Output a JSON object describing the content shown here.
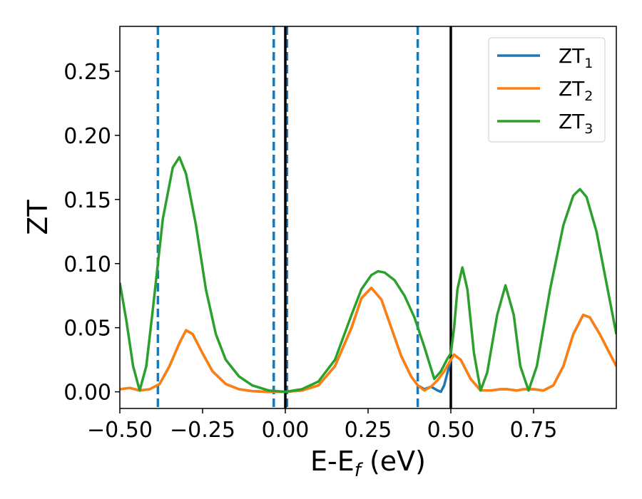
{
  "chart_data": {
    "type": "line",
    "xlabel": "E-E",
    "xlabel_sub": "f",
    "xlabel_unit": " (eV)",
    "ylabel": "ZT",
    "xlim": [
      -0.5,
      1.0
    ],
    "ylim": [
      -0.013,
      0.285
    ],
    "x_ticks": [
      -0.5,
      -0.25,
      0.0,
      0.25,
      0.5,
      0.75
    ],
    "x_tick_labels": [
      "−0.50",
      "−0.25",
      "0.00",
      "0.25",
      "0.50",
      "0.75"
    ],
    "y_ticks": [
      0.0,
      0.05,
      0.1,
      0.15,
      0.2,
      0.25
    ],
    "y_tick_labels": [
      "0.00",
      "0.05",
      "0.10",
      "0.15",
      "0.20",
      "0.25"
    ],
    "grid": false,
    "legend_position": "top-right",
    "legend_base": "ZT",
    "series": [
      {
        "name": "ZT1",
        "label_sub": "1",
        "color": "#1f77b4",
        "points": [
          [
            -0.5,
            0.002
          ],
          [
            -0.47,
            0.003
          ],
          [
            -0.44,
            0.001
          ],
          [
            -0.41,
            0.002
          ],
          [
            -0.38,
            0.006
          ],
          [
            -0.35,
            0.02
          ],
          [
            -0.32,
            0.038
          ],
          [
            -0.3,
            0.048
          ],
          [
            -0.28,
            0.045
          ],
          [
            -0.25,
            0.03
          ],
          [
            -0.22,
            0.016
          ],
          [
            -0.18,
            0.006
          ],
          [
            -0.14,
            0.002
          ],
          [
            -0.1,
            0.0005
          ],
          [
            -0.05,
            0.0
          ],
          [
            0.0,
            0.0
          ],
          [
            0.05,
            0.001
          ],
          [
            0.1,
            0.005
          ],
          [
            0.15,
            0.02
          ],
          [
            0.2,
            0.05
          ],
          [
            0.23,
            0.073
          ],
          [
            0.26,
            0.081
          ],
          [
            0.29,
            0.072
          ],
          [
            0.32,
            0.05
          ],
          [
            0.35,
            0.028
          ],
          [
            0.38,
            0.012
          ],
          [
            0.4,
            0.005
          ],
          [
            0.42,
            0.002
          ],
          [
            0.44,
            0.004
          ],
          [
            0.46,
            0.001
          ],
          [
            0.47,
            0.0
          ],
          [
            0.48,
            0.005
          ],
          [
            0.5,
            0.025
          ],
          [
            0.51,
            0.029
          ],
          [
            0.53,
            0.025
          ],
          [
            0.56,
            0.01
          ],
          [
            0.59,
            0.001
          ],
          [
            0.62,
            0.001
          ],
          [
            0.65,
            0.002
          ],
          [
            0.67,
            0.002
          ],
          [
            0.7,
            0.001
          ],
          [
            0.72,
            0.002
          ],
          [
            0.75,
            0.002
          ],
          [
            0.78,
            0.001
          ],
          [
            0.81,
            0.005
          ],
          [
            0.84,
            0.02
          ],
          [
            0.87,
            0.045
          ],
          [
            0.9,
            0.06
          ],
          [
            0.92,
            0.058
          ],
          [
            0.95,
            0.045
          ],
          [
            0.98,
            0.03
          ],
          [
            1.0,
            0.02
          ]
        ]
      },
      {
        "name": "ZT2",
        "label_sub": "2",
        "color": "#ff7f0e",
        "points": [
          [
            -0.5,
            0.002
          ],
          [
            -0.47,
            0.003
          ],
          [
            -0.44,
            0.001
          ],
          [
            -0.41,
            0.002
          ],
          [
            -0.38,
            0.006
          ],
          [
            -0.35,
            0.02
          ],
          [
            -0.32,
            0.038
          ],
          [
            -0.3,
            0.048
          ],
          [
            -0.28,
            0.045
          ],
          [
            -0.25,
            0.03
          ],
          [
            -0.22,
            0.016
          ],
          [
            -0.18,
            0.006
          ],
          [
            -0.14,
            0.002
          ],
          [
            -0.1,
            0.0005
          ],
          [
            -0.05,
            0.0
          ],
          [
            0.0,
            0.0
          ],
          [
            0.05,
            0.001
          ],
          [
            0.1,
            0.005
          ],
          [
            0.15,
            0.02
          ],
          [
            0.2,
            0.05
          ],
          [
            0.23,
            0.073
          ],
          [
            0.26,
            0.081
          ],
          [
            0.29,
            0.072
          ],
          [
            0.32,
            0.05
          ],
          [
            0.35,
            0.028
          ],
          [
            0.38,
            0.012
          ],
          [
            0.4,
            0.005
          ],
          [
            0.42,
            0.001
          ],
          [
            0.44,
            0.004
          ],
          [
            0.46,
            0.009
          ],
          [
            0.48,
            0.016
          ],
          [
            0.5,
            0.025
          ],
          [
            0.51,
            0.029
          ],
          [
            0.53,
            0.025
          ],
          [
            0.56,
            0.01
          ],
          [
            0.59,
            0.001
          ],
          [
            0.62,
            0.001
          ],
          [
            0.65,
            0.002
          ],
          [
            0.67,
            0.002
          ],
          [
            0.7,
            0.001
          ],
          [
            0.72,
            0.002
          ],
          [
            0.75,
            0.002
          ],
          [
            0.78,
            0.001
          ],
          [
            0.81,
            0.005
          ],
          [
            0.84,
            0.02
          ],
          [
            0.87,
            0.045
          ],
          [
            0.9,
            0.06
          ],
          [
            0.92,
            0.058
          ],
          [
            0.95,
            0.045
          ],
          [
            0.98,
            0.03
          ],
          [
            1.0,
            0.02
          ]
        ]
      },
      {
        "name": "ZT3",
        "label_sub": "3",
        "color": "#2ca02c",
        "points": [
          [
            -0.5,
            0.085
          ],
          [
            -0.48,
            0.055
          ],
          [
            -0.46,
            0.02
          ],
          [
            -0.44,
            0.001
          ],
          [
            -0.42,
            0.02
          ],
          [
            -0.4,
            0.065
          ],
          [
            -0.37,
            0.135
          ],
          [
            -0.34,
            0.175
          ],
          [
            -0.32,
            0.183
          ],
          [
            -0.3,
            0.17
          ],
          [
            -0.27,
            0.13
          ],
          [
            -0.24,
            0.08
          ],
          [
            -0.21,
            0.045
          ],
          [
            -0.18,
            0.025
          ],
          [
            -0.14,
            0.012
          ],
          [
            -0.1,
            0.005
          ],
          [
            -0.05,
            0.001
          ],
          [
            0.0,
            0.0
          ],
          [
            0.05,
            0.002
          ],
          [
            0.1,
            0.008
          ],
          [
            0.15,
            0.025
          ],
          [
            0.2,
            0.06
          ],
          [
            0.23,
            0.08
          ],
          [
            0.26,
            0.091
          ],
          [
            0.28,
            0.094
          ],
          [
            0.3,
            0.093
          ],
          [
            0.33,
            0.087
          ],
          [
            0.36,
            0.075
          ],
          [
            0.39,
            0.058
          ],
          [
            0.42,
            0.035
          ],
          [
            0.45,
            0.01
          ],
          [
            0.47,
            0.016
          ],
          [
            0.49,
            0.026
          ],
          [
            0.5,
            0.03
          ],
          [
            0.51,
            0.05
          ],
          [
            0.52,
            0.08
          ],
          [
            0.535,
            0.097
          ],
          [
            0.55,
            0.08
          ],
          [
            0.57,
            0.03
          ],
          [
            0.59,
            0.001
          ],
          [
            0.61,
            0.015
          ],
          [
            0.64,
            0.06
          ],
          [
            0.665,
            0.083
          ],
          [
            0.69,
            0.06
          ],
          [
            0.71,
            0.02
          ],
          [
            0.735,
            0.001
          ],
          [
            0.76,
            0.02
          ],
          [
            0.8,
            0.08
          ],
          [
            0.84,
            0.13
          ],
          [
            0.87,
            0.153
          ],
          [
            0.89,
            0.158
          ],
          [
            0.91,
            0.152
          ],
          [
            0.94,
            0.125
          ],
          [
            0.97,
            0.085
          ],
          [
            1.0,
            0.045
          ]
        ]
      }
    ],
    "vlines": [
      {
        "x": -0.385,
        "style": "dashed",
        "color": "#1f77b4"
      },
      {
        "x": -0.035,
        "style": "dashed",
        "color": "#1f77b4"
      },
      {
        "x": 0.005,
        "style": "dashed",
        "color": "#1f77b4"
      },
      {
        "x": 0.4,
        "style": "dashed",
        "color": "#1f77b4"
      },
      {
        "x": 0.0,
        "style": "solid",
        "color": "#000000"
      },
      {
        "x": 0.5,
        "style": "solid",
        "color": "#000000"
      }
    ]
  }
}
